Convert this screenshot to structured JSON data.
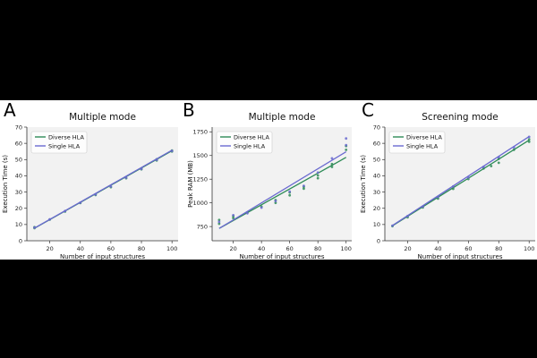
{
  "figure": {
    "legend_labels": [
      "Diverse HLA",
      "Single HLA"
    ],
    "colors": {
      "diverse": "#2e8b57",
      "single": "#6a6ad0",
      "panel_bg": "#f2f2f2",
      "figure_bg": "#ffffff",
      "page_bg": "#000000"
    }
  },
  "chart_data": [
    {
      "panel_label": "A",
      "type": "scatter",
      "title": "Multiple mode",
      "xlabel": "Number of input structures",
      "ylabel": "Execution Time (s)",
      "xlim": [
        5,
        104
      ],
      "ylim": [
        0,
        70
      ],
      "x_ticks": [
        20,
        40,
        60,
        80,
        100
      ],
      "y_ticks": [
        0,
        10,
        20,
        30,
        40,
        50,
        60,
        70
      ],
      "legend": "top-left",
      "series": [
        {
          "name": "Diverse HLA",
          "x": [
            10,
            10,
            20,
            30,
            40,
            50,
            60,
            70,
            80,
            90,
            90,
            100,
            100
          ],
          "y": [
            7.8,
            8.4,
            13,
            18,
            23.2,
            28.2,
            33,
            38.5,
            44,
            49.5,
            50.2,
            55,
            55.6
          ],
          "fit": [
            [
              10,
              7.7
            ],
            [
              100,
              55.4
            ]
          ]
        },
        {
          "name": "Single HLA",
          "x": [
            10,
            20,
            30,
            40,
            50,
            60,
            70,
            80,
            90,
            100
          ],
          "y": [
            8.1,
            13.2,
            18.3,
            23.5,
            28.5,
            33.4,
            38.8,
            44.2,
            49.8,
            55.3
          ],
          "fit": [
            [
              10,
              7.8
            ],
            [
              100,
              55.8
            ]
          ]
        }
      ]
    },
    {
      "panel_label": "B",
      "type": "scatter",
      "title": "Multiple mode",
      "xlabel": "Number of input structures",
      "ylabel": "Peak RAM (MB)",
      "xlim": [
        5,
        104
      ],
      "ylim": [
        600,
        1800
      ],
      "x_ticks": [
        20,
        40,
        60,
        80,
        100
      ],
      "y_ticks": [
        750,
        1000,
        1250,
        1500,
        1750
      ],
      "legend": "top-left",
      "series": [
        {
          "name": "Diverse HLA",
          "x": [
            10,
            10,
            20,
            20,
            30,
            40,
            50,
            50,
            60,
            60,
            70,
            70,
            80,
            80,
            90,
            90,
            100,
            100
          ],
          "y": [
            780,
            820,
            840,
            860,
            900,
            960,
            1000,
            1030,
            1080,
            1110,
            1150,
            1170,
            1260,
            1290,
            1380,
            1410,
            1560,
            1600
          ],
          "fit": [
            [
              10,
              730
            ],
            [
              100,
              1480
            ]
          ]
        },
        {
          "name": "Single HLA",
          "x": [
            10,
            20,
            30,
            40,
            50,
            60,
            70,
            80,
            90,
            100,
            100
          ],
          "y": [
            800,
            870,
            890,
            950,
            1020,
            1120,
            1180,
            1320,
            1470,
            1610,
            1680
          ],
          "fit": [
            [
              10,
              730
            ],
            [
              100,
              1540
            ]
          ]
        }
      ]
    },
    {
      "panel_label": "C",
      "type": "scatter",
      "title": "Screening mode",
      "xlabel": "Number of input structures",
      "ylabel": "Execution Time (s)",
      "xlim": [
        5,
        104
      ],
      "ylim": [
        0,
        70
      ],
      "x_ticks": [
        20,
        40,
        60,
        80,
        100
      ],
      "y_ticks": [
        0,
        10,
        20,
        30,
        40,
        50,
        60,
        70
      ],
      "legend": "top-left",
      "series": [
        {
          "name": "Diverse HLA",
          "x": [
            10,
            20,
            30,
            40,
            50,
            60,
            70,
            75,
            80,
            80,
            90,
            100,
            100
          ],
          "y": [
            9,
            14.5,
            20.5,
            26,
            32,
            38,
            44.5,
            46,
            48,
            50.5,
            56,
            61,
            62.5
          ],
          "fit": [
            [
              10,
              9.2
            ],
            [
              100,
              62
            ]
          ]
        },
        {
          "name": "Single HLA",
          "x": [
            10,
            20,
            30,
            40,
            50,
            60,
            70,
            80,
            90,
            100
          ],
          "y": [
            9.3,
            15.2,
            21,
            27,
            33.5,
            39,
            45.5,
            51.5,
            57.5,
            64
          ],
          "fit": [
            [
              10,
              9.4
            ],
            [
              100,
              64.2
            ]
          ]
        }
      ]
    }
  ]
}
